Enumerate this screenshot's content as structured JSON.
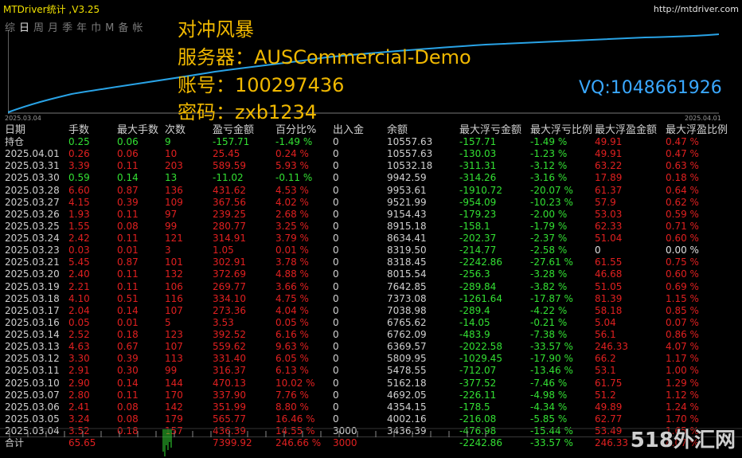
{
  "window": {
    "title": "MTDriver统计 ,V3.25",
    "url": "http://mtdriver.com"
  },
  "period_tabs": [
    {
      "label": "综",
      "active": false
    },
    {
      "label": "日",
      "active": true
    },
    {
      "label": "周",
      "active": false
    },
    {
      "label": "月",
      "active": false
    },
    {
      "label": "季",
      "active": false
    },
    {
      "label": "年",
      "active": false
    },
    {
      "label": "巾",
      "active": false
    },
    {
      "label": "M",
      "active": false
    },
    {
      "label": "备",
      "active": false
    },
    {
      "label": "帐",
      "active": false
    }
  ],
  "overlay": {
    "name": "对冲风暴",
    "server": "服务器：AUSCommercial-Demo",
    "account": "账号：100297436",
    "password": "密码：zxb1234",
    "vq": "VQ:1048661926"
  },
  "equity_chart": {
    "start_date": "2025.03.04",
    "end_date": "2025.04.01"
  },
  "colors": {
    "profit": "#33e033",
    "loss": "#e02020",
    "title": "#f0e000",
    "overlay": "#f0b800",
    "vq": "#3aa8ff",
    "curve": "#29a3e6"
  },
  "table": {
    "headers": [
      "日期",
      "手数",
      "最大手数",
      "次数",
      "盈亏金额",
      "百分比%",
      "出入金",
      "余额",
      "最大浮亏金额",
      "最大浮亏比例",
      "最大浮盈金额",
      "最大浮盈比例"
    ],
    "rows": [
      {
        "date": "持仓",
        "lots": "0.25",
        "maxlots": "0.06",
        "count": "9",
        "pl": "-157.71",
        "pct": "-1.49 %",
        "dep": "0",
        "bal": "10557.63",
        "mfl": "-157.71",
        "mflp": "-1.49 %",
        "mfp": "49.91",
        "mfpp": "0.47 %",
        "sign": "pos"
      },
      {
        "date": "2025.04.01",
        "lots": "0.26",
        "maxlots": "0.06",
        "count": "10",
        "pl": "25.45",
        "pct": "0.24 %",
        "dep": "0",
        "bal": "10557.63",
        "mfl": "-130.03",
        "mflp": "-1.23 %",
        "mfp": "49.91",
        "mfpp": "0.47 %",
        "sign": "neg"
      },
      {
        "date": "2025.03.31",
        "lots": "3.39",
        "maxlots": "0.11",
        "count": "203",
        "pl": "589.59",
        "pct": "5.93 %",
        "dep": "0",
        "bal": "10532.18",
        "mfl": "-311.31",
        "mflp": "-3.12 %",
        "mfp": "63.22",
        "mfpp": "0.63 %",
        "sign": "neg"
      },
      {
        "date": "2025.03.30",
        "lots": "0.59",
        "maxlots": "0.14",
        "count": "13",
        "pl": "-11.02",
        "pct": "-0.11 %",
        "dep": "0",
        "bal": "9942.59",
        "mfl": "-314.26",
        "mflp": "-3.16 %",
        "mfp": "17.89",
        "mfpp": "0.18 %",
        "sign": "pos"
      },
      {
        "date": "2025.03.28",
        "lots": "6.60",
        "maxlots": "0.87",
        "count": "136",
        "pl": "431.62",
        "pct": "4.53 %",
        "dep": "0",
        "bal": "9953.61",
        "mfl": "-1910.72",
        "mflp": "-20.07 %",
        "mfp": "61.37",
        "mfpp": "0.64 %",
        "sign": "neg"
      },
      {
        "date": "2025.03.27",
        "lots": "4.15",
        "maxlots": "0.39",
        "count": "109",
        "pl": "367.56",
        "pct": "4.02 %",
        "dep": "0",
        "bal": "9521.99",
        "mfl": "-954.09",
        "mflp": "-10.23 %",
        "mfp": "57.9",
        "mfpp": "0.62 %",
        "sign": "neg"
      },
      {
        "date": "2025.03.26",
        "lots": "1.93",
        "maxlots": "0.11",
        "count": "97",
        "pl": "239.25",
        "pct": "2.68 %",
        "dep": "0",
        "bal": "9154.43",
        "mfl": "-179.23",
        "mflp": "-2.00 %",
        "mfp": "53.03",
        "mfpp": "0.59 %",
        "sign": "neg"
      },
      {
        "date": "2025.03.25",
        "lots": "1.55",
        "maxlots": "0.08",
        "count": "99",
        "pl": "280.77",
        "pct": "3.25 %",
        "dep": "0",
        "bal": "8915.18",
        "mfl": "-158.1",
        "mflp": "-1.79 %",
        "mfp": "62.33",
        "mfpp": "0.71 %",
        "sign": "neg"
      },
      {
        "date": "2025.03.24",
        "lots": "2.42",
        "maxlots": "0.11",
        "count": "121",
        "pl": "314.91",
        "pct": "3.79 %",
        "dep": "0",
        "bal": "8634.41",
        "mfl": "-202.37",
        "mflp": "-2.37 %",
        "mfp": "51.04",
        "mfpp": "0.60 %",
        "sign": "neg"
      },
      {
        "date": "2025.03.23",
        "lots": "0.03",
        "maxlots": "0.01",
        "count": "3",
        "pl": "1.05",
        "pct": "0.01 %",
        "dep": "0",
        "bal": "8319.50",
        "mfl": "-214.77",
        "mflp": "-2.58 %",
        "mfp": "0",
        "mfpp": "0.00 %",
        "sign": "neg",
        "mfp_white": true
      },
      {
        "date": "2025.03.21",
        "lots": "5.45",
        "maxlots": "0.87",
        "count": "101",
        "pl": "302.91",
        "pct": "3.78 %",
        "dep": "0",
        "bal": "8318.45",
        "mfl": "-2242.86",
        "mflp": "-27.61 %",
        "mfp": "61.55",
        "mfpp": "0.75 %",
        "sign": "neg"
      },
      {
        "date": "2025.03.20",
        "lots": "2.40",
        "maxlots": "0.11",
        "count": "132",
        "pl": "372.69",
        "pct": "4.88 %",
        "dep": "0",
        "bal": "8015.54",
        "mfl": "-256.3",
        "mflp": "-3.28 %",
        "mfp": "46.68",
        "mfpp": "0.60 %",
        "sign": "neg"
      },
      {
        "date": "2025.03.19",
        "lots": "2.21",
        "maxlots": "0.11",
        "count": "106",
        "pl": "269.77",
        "pct": "3.66 %",
        "dep": "0",
        "bal": "7642.85",
        "mfl": "-289.84",
        "mflp": "-3.82 %",
        "mfp": "51.05",
        "mfpp": "0.69 %",
        "sign": "neg"
      },
      {
        "date": "2025.03.18",
        "lots": "4.10",
        "maxlots": "0.51",
        "count": "116",
        "pl": "334.10",
        "pct": "4.75 %",
        "dep": "0",
        "bal": "7373.08",
        "mfl": "-1261.64",
        "mflp": "-17.87 %",
        "mfp": "81.39",
        "mfpp": "1.15 %",
        "sign": "neg"
      },
      {
        "date": "2025.03.17",
        "lots": "2.04",
        "maxlots": "0.14",
        "count": "107",
        "pl": "273.36",
        "pct": "4.04 %",
        "dep": "0",
        "bal": "7038.98",
        "mfl": "-289.4",
        "mflp": "-4.22 %",
        "mfp": "58.18",
        "mfpp": "0.85 %",
        "sign": "neg"
      },
      {
        "date": "2025.03.16",
        "lots": "0.05",
        "maxlots": "0.01",
        "count": "5",
        "pl": "3.53",
        "pct": "0.05 %",
        "dep": "0",
        "bal": "6765.62",
        "mfl": "-14.05",
        "mflp": "-0.21 %",
        "mfp": "5.04",
        "mfpp": "0.07 %",
        "sign": "neg"
      },
      {
        "date": "2025.03.14",
        "lots": "2.52",
        "maxlots": "0.18",
        "count": "123",
        "pl": "392.52",
        "pct": "6.16 %",
        "dep": "0",
        "bal": "6762.09",
        "mfl": "-483.9",
        "mflp": "-7.38 %",
        "mfp": "56.1",
        "mfpp": "0.86 %",
        "sign": "neg"
      },
      {
        "date": "2025.03.13",
        "lots": "4.63",
        "maxlots": "0.67",
        "count": "107",
        "pl": "559.62",
        "pct": "9.63 %",
        "dep": "0",
        "bal": "6369.57",
        "mfl": "-2022.58",
        "mflp": "-33.57 %",
        "mfp": "246.33",
        "mfpp": "4.07 %",
        "sign": "neg"
      },
      {
        "date": "2025.03.12",
        "lots": "3.30",
        "maxlots": "0.39",
        "count": "113",
        "pl": "331.40",
        "pct": "6.05 %",
        "dep": "0",
        "bal": "5809.95",
        "mfl": "-1029.45",
        "mflp": "-17.90 %",
        "mfp": "66.2",
        "mfpp": "1.17 %",
        "sign": "neg"
      },
      {
        "date": "2025.03.11",
        "lots": "2.91",
        "maxlots": "0.30",
        "count": "99",
        "pl": "316.37",
        "pct": "6.13 %",
        "dep": "0",
        "bal": "5478.55",
        "mfl": "-712.07",
        "mflp": "-13.46 %",
        "mfp": "53.1",
        "mfpp": "1.00 %",
        "sign": "neg"
      },
      {
        "date": "2025.03.10",
        "lots": "2.90",
        "maxlots": "0.14",
        "count": "144",
        "pl": "470.13",
        "pct": "10.02 %",
        "dep": "0",
        "bal": "5162.18",
        "mfl": "-377.52",
        "mflp": "-7.46 %",
        "mfp": "61.75",
        "mfpp": "1.29 %",
        "sign": "neg"
      },
      {
        "date": "2025.03.07",
        "lots": "2.80",
        "maxlots": "0.11",
        "count": "170",
        "pl": "337.90",
        "pct": "7.76 %",
        "dep": "0",
        "bal": "4692.05",
        "mfl": "-226.11",
        "mflp": "-4.98 %",
        "mfp": "51.2",
        "mfpp": "1.12 %",
        "sign": "neg"
      },
      {
        "date": "2025.03.06",
        "lots": "2.41",
        "maxlots": "0.08",
        "count": "142",
        "pl": "351.99",
        "pct": "8.80 %",
        "dep": "0",
        "bal": "4354.15",
        "mfl": "-178.5",
        "mflp": "-4.34 %",
        "mfp": "49.89",
        "mfpp": "1.24 %",
        "sign": "neg"
      },
      {
        "date": "2025.03.05",
        "lots": "3.24",
        "maxlots": "0.08",
        "count": "179",
        "pl": "565.77",
        "pct": "16.46 %",
        "dep": "0",
        "bal": "4002.16",
        "mfl": "-216.08",
        "mflp": "-5.85 %",
        "mfp": "62.77",
        "mfpp": "1.70 %",
        "sign": "neg"
      },
      {
        "date": "2025.03.04",
        "lots": "3.52",
        "maxlots": "0.18",
        "count": "157",
        "pl": "436.39",
        "pct": "14.55 %",
        "dep": "3000",
        "bal": "3436.39",
        "mfl": "-476.98",
        "mflp": "-15.44 %",
        "mfp": "53.49",
        "mfpp": "1.65 %",
        "sign": "neg"
      }
    ],
    "total": {
      "date": "合计",
      "lots": "65.65",
      "maxlots": "",
      "count": "",
      "pl": "7399.92",
      "pct": "246.66 %",
      "dep": "3000",
      "bal": "",
      "mfl": "-2242.86",
      "mflp": "-33.57 %",
      "mfp": "246.33",
      "mfpp": "4.07 %"
    }
  },
  "watermark": "518外汇网"
}
